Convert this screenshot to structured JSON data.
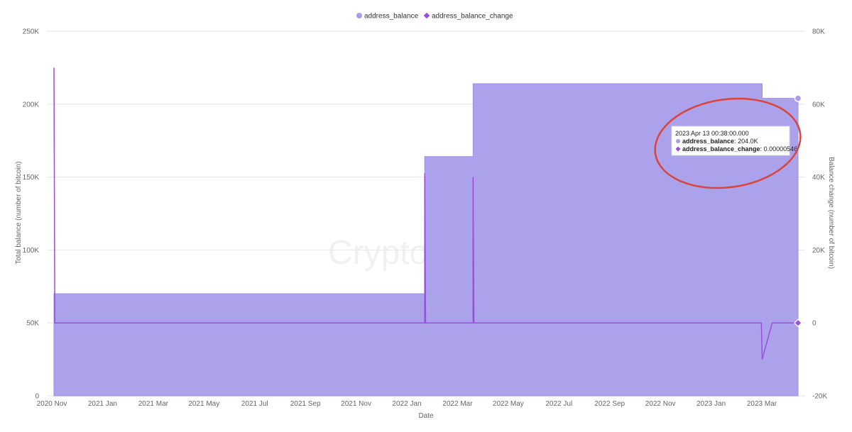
{
  "chart_data": {
    "type": "area",
    "watermark": "CryptoQuant",
    "legend": [
      {
        "name": "address_balance",
        "marker": "circle",
        "color": "#a89deb"
      },
      {
        "name": "address_balance_change",
        "marker": "diamond",
        "color": "#9b4de0"
      }
    ],
    "xlabel": "Date",
    "ylabel_left": "Total balance (number of bitcoin)",
    "ylabel_right": "Balance change (number of bitcoin)",
    "x_ticks": [
      "2020 Nov",
      "2021 Jan",
      "2021 Mar",
      "2021 May",
      "2021 Jul",
      "2021 Sep",
      "2021 Nov",
      "2022 Jan",
      "2022 Mar",
      "2022 May",
      "2022 Jul",
      "2022 Sep",
      "2022 Nov",
      "2023 Jan",
      "2023 Mar"
    ],
    "y_left_ticks": [
      "0",
      "50K",
      "100K",
      "150K",
      "200K",
      "250K"
    ],
    "y_right_ticks": [
      "-20K",
      "0",
      "20K",
      "40K",
      "60K",
      "80K"
    ],
    "ylim_left": [
      0,
      250000
    ],
    "ylim_right": [
      -20000,
      80000
    ],
    "xlim": [
      "2020-11-01",
      "2023-04-13"
    ],
    "series": [
      {
        "name": "address_balance",
        "axis": "left",
        "color": "#a89deb",
        "points": [
          [
            "2020-11-01",
            0
          ],
          [
            "2020-11-01",
            70000
          ],
          [
            "2022-01-20",
            70000
          ],
          [
            "2022-01-20",
            164000
          ],
          [
            "2022-03-19",
            164000
          ],
          [
            "2022-03-19",
            214000
          ],
          [
            "2023-03-01",
            214000
          ],
          [
            "2023-03-01",
            204000
          ],
          [
            "2023-04-13",
            204000
          ]
        ]
      },
      {
        "name": "address_balance_change",
        "axis": "right",
        "color": "#9b4de0",
        "points": [
          [
            "2020-11-01",
            70000
          ],
          [
            "2020-11-02",
            0
          ],
          [
            "2022-01-20",
            0
          ],
          [
            "2022-01-20",
            41000
          ],
          [
            "2022-01-21",
            0
          ],
          [
            "2022-03-19",
            0
          ],
          [
            "2022-03-19",
            40000
          ],
          [
            "2022-03-20",
            0
          ],
          [
            "2023-02-28",
            0
          ],
          [
            "2023-03-01",
            -10000
          ],
          [
            "2023-03-13",
            0
          ],
          [
            "2023-04-13",
            0
          ]
        ]
      }
    ],
    "tooltip": {
      "date": "2023 Apr 13 00:38:00.000",
      "rows": [
        {
          "name": "address_balance",
          "value": "204.0K"
        },
        {
          "name": "address_balance_change",
          "value": "0.00000546"
        }
      ]
    },
    "grid": true,
    "legend_position": "top-center",
    "annotation": "red ellipse around tooltip"
  }
}
